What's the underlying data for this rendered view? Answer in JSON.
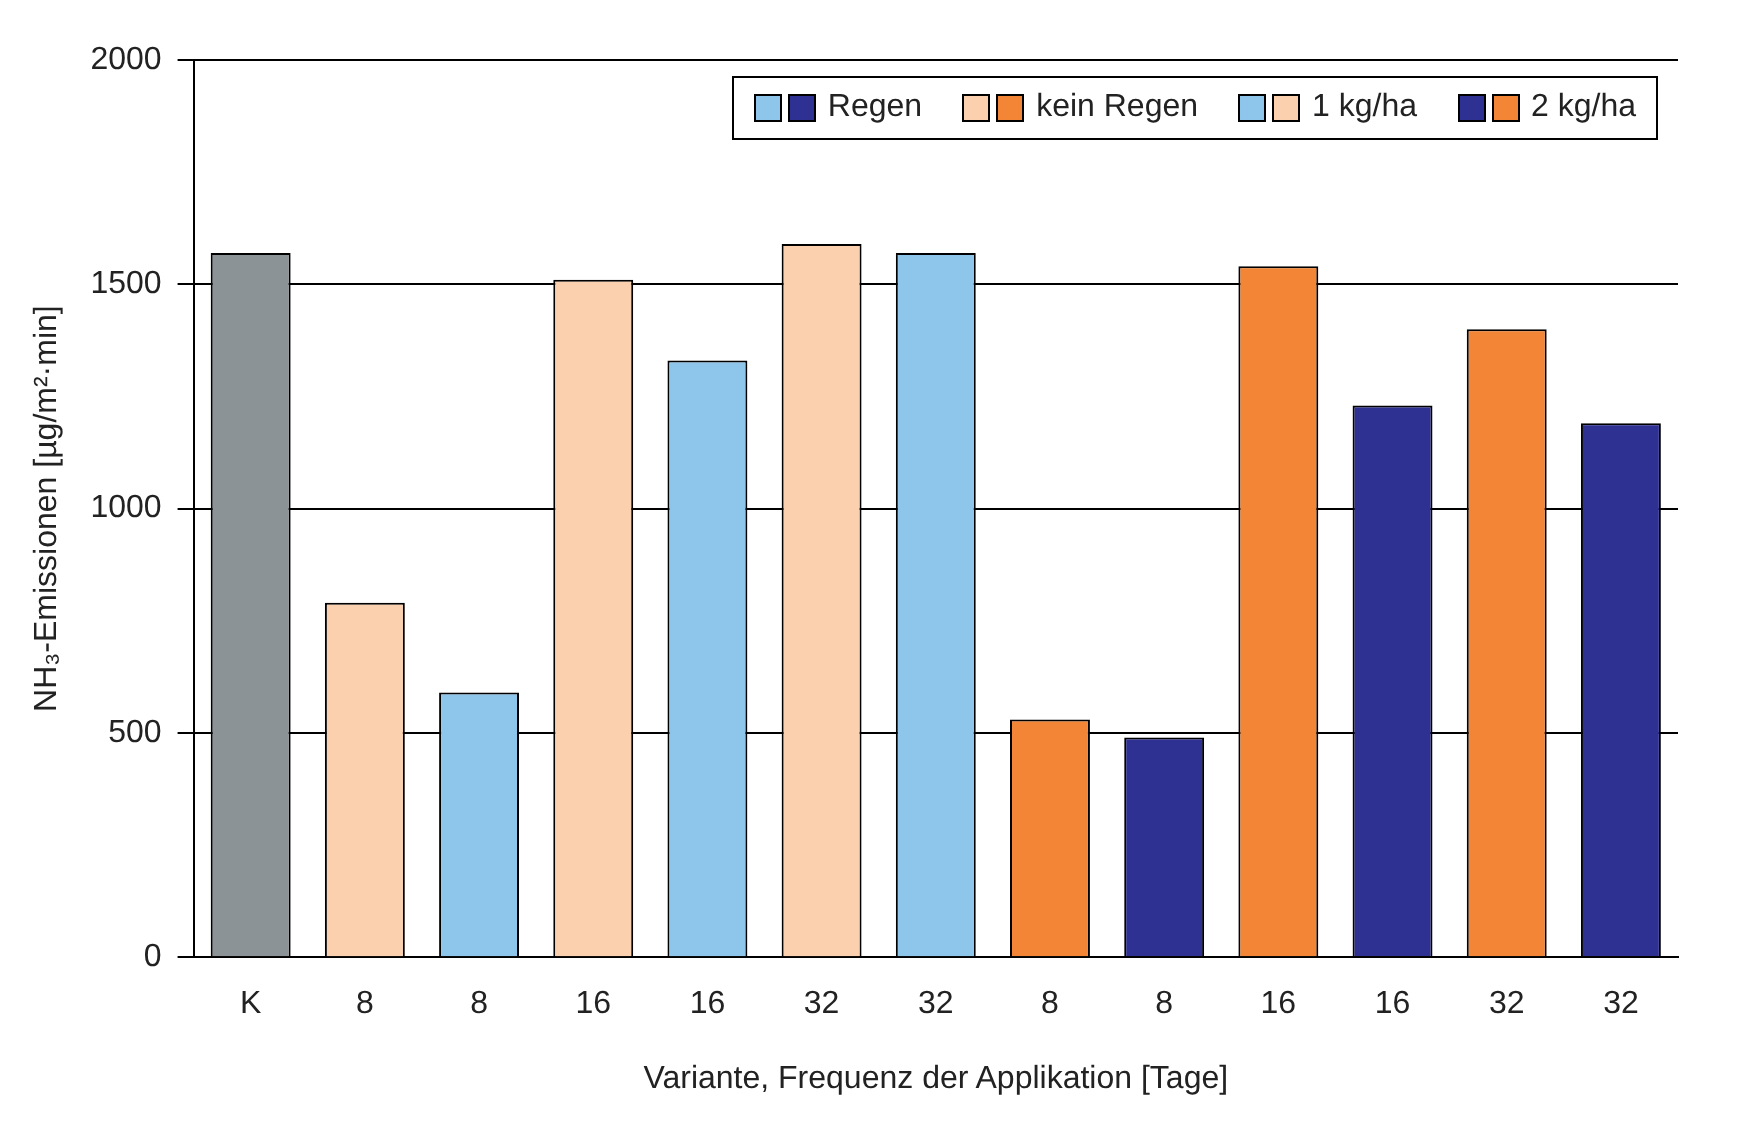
{
  "chart_data": {
    "type": "bar",
    "xlabel": "Variante, Frequenz der Applikation [Tage]",
    "ylabel": "NH₃-Emissionen [µg/m²·min]",
    "categories": [
      "K",
      "8",
      "8",
      "16",
      "16",
      "32",
      "32",
      "8",
      "8",
      "16",
      "16",
      "32",
      "32"
    ],
    "values": [
      1570,
      790,
      590,
      1510,
      1330,
      1590,
      1570,
      530,
      490,
      1540,
      1230,
      1400,
      1190
    ],
    "colors": [
      "#8c9396",
      "#fbd0ae",
      "#8ec5ea",
      "#fbd0ae",
      "#8ec5ea",
      "#fbd0ae",
      "#8ec5ea",
      "#f38636",
      "#2e3192",
      "#f38636",
      "#2e3192",
      "#f38636",
      "#2e3192"
    ],
    "ylim": [
      0,
      2000
    ],
    "yticks": [
      0,
      500,
      1000,
      1500,
      2000
    ],
    "grid": "y",
    "annotations": [
      "Regen",
      "kein Regen",
      "1 kg/ha",
      "2 kg/ha"
    ]
  }
}
